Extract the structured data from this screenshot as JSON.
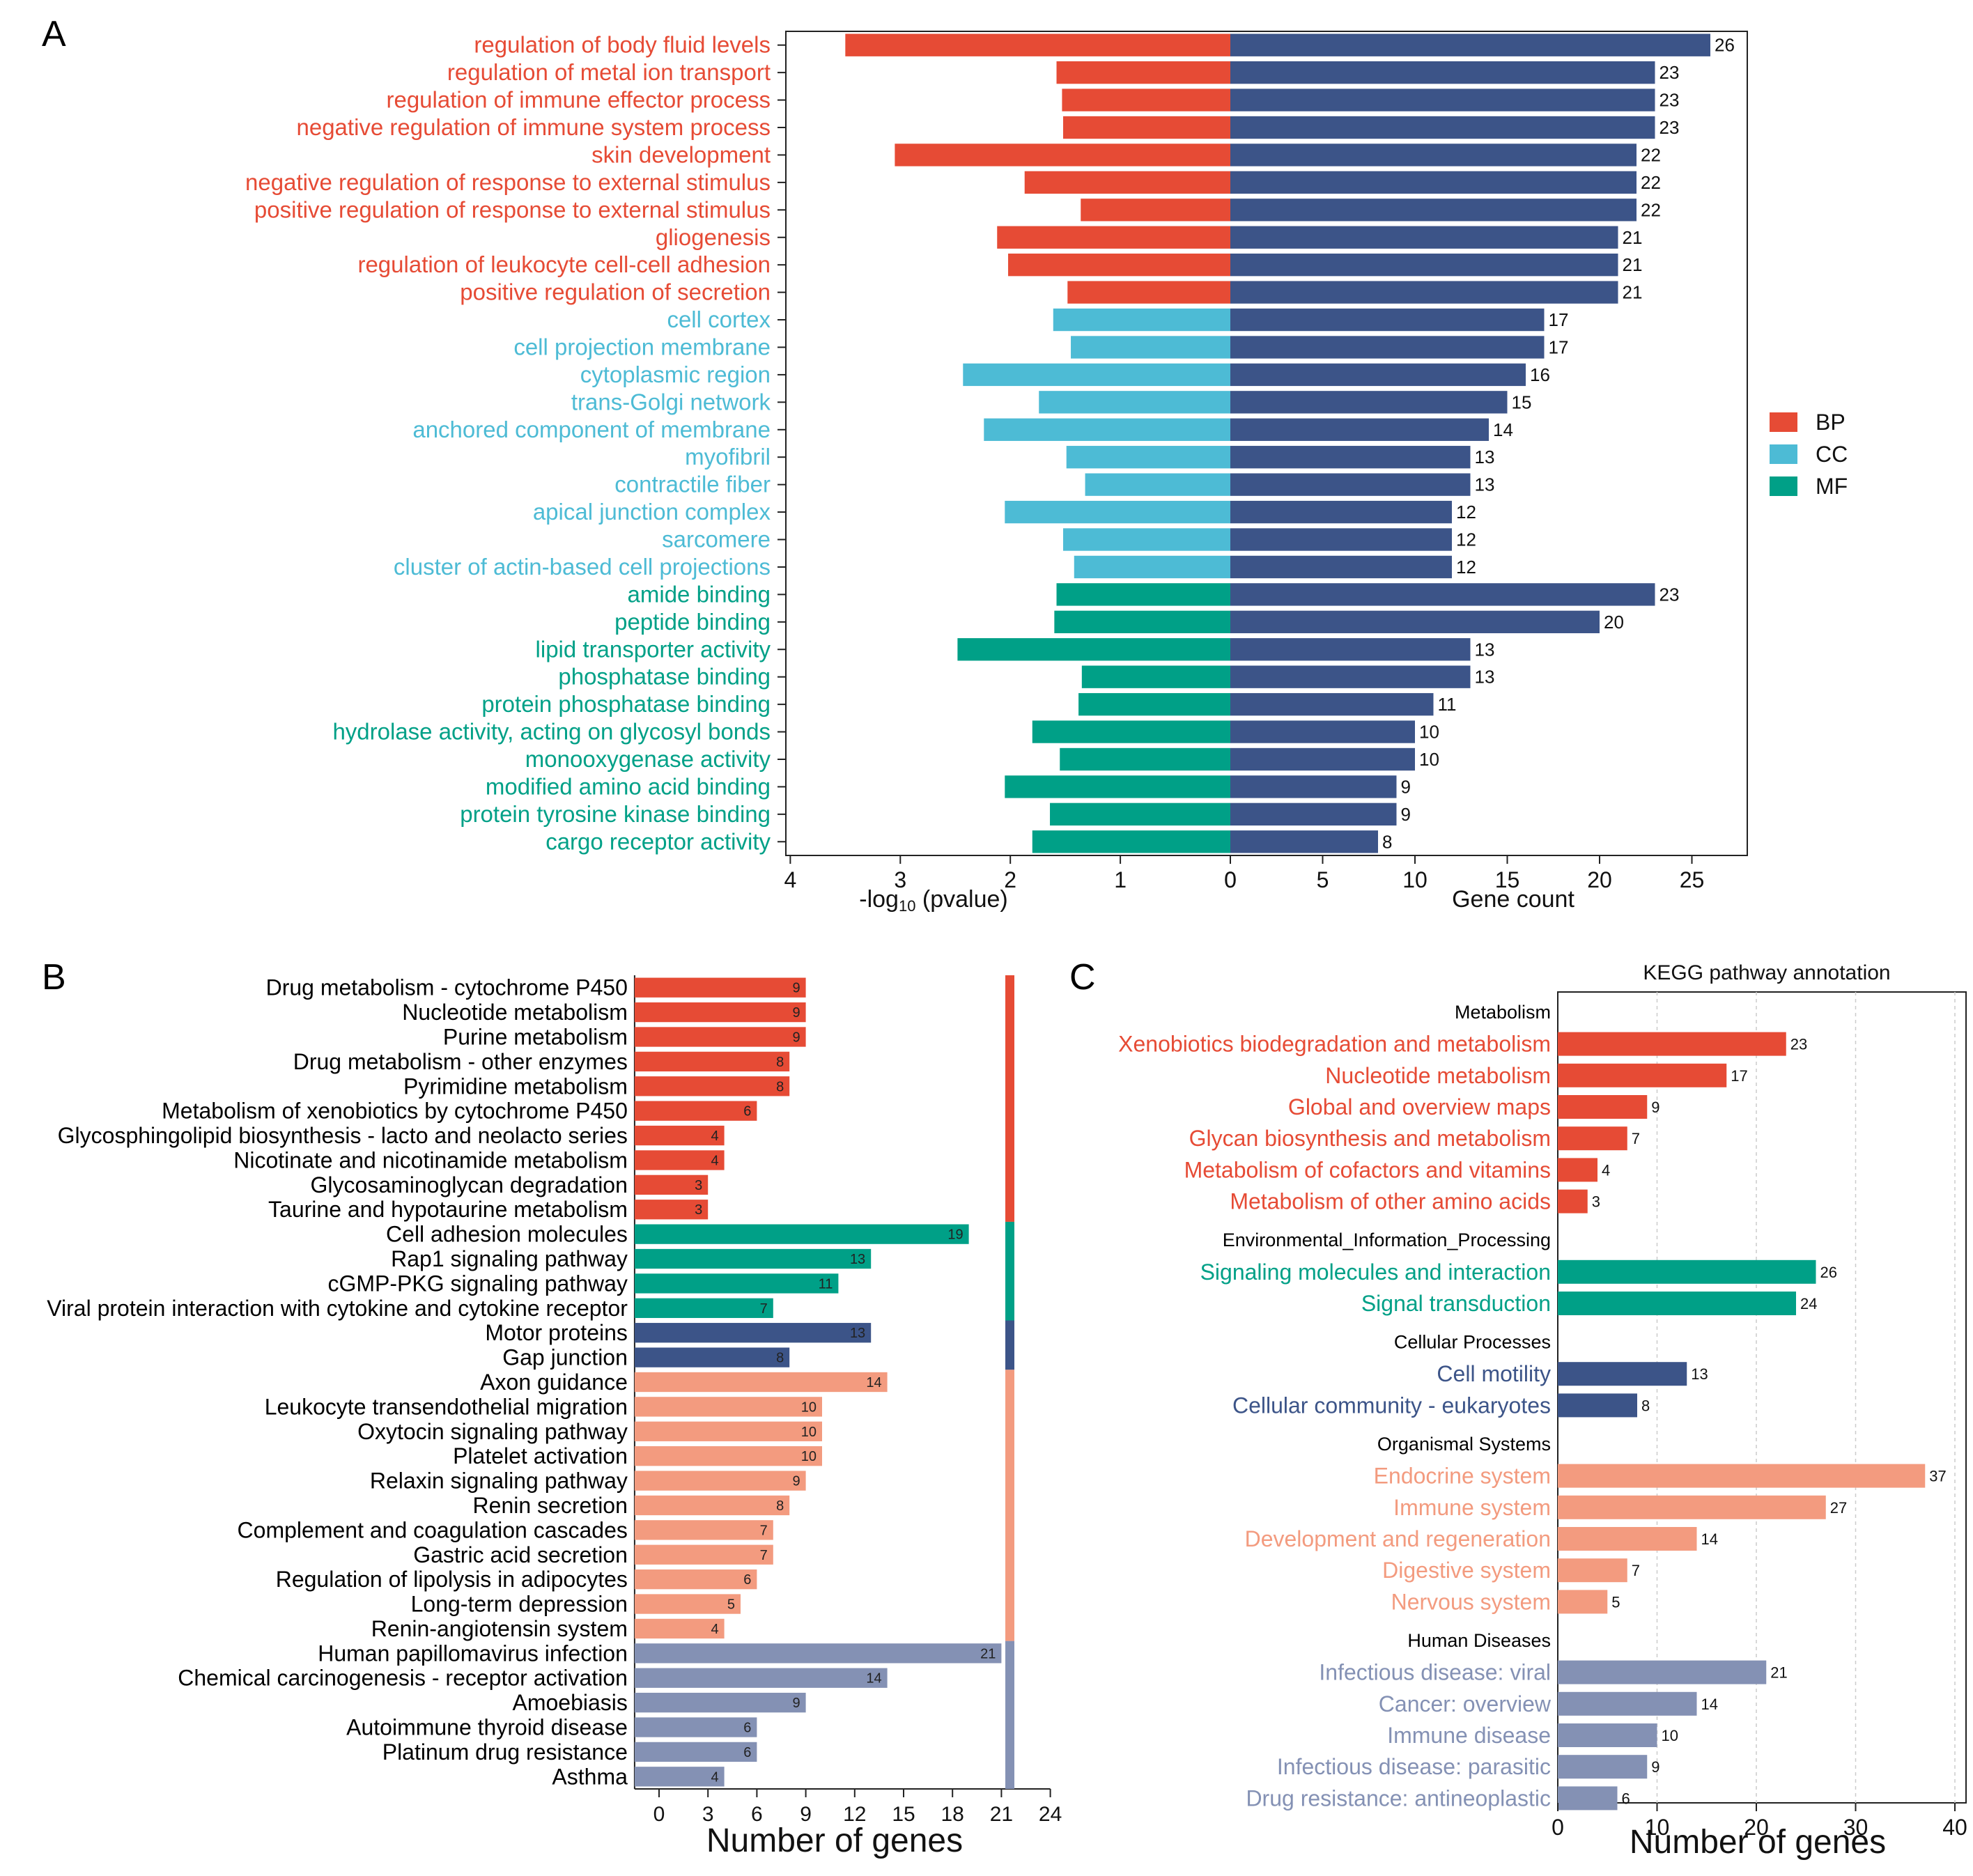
{
  "colors": {
    "BP": "#e64b35",
    "CC": "#4dbbd5",
    "MF": "#00a087",
    "gene_bar": "#3c5488",
    "metab": "#e64b35",
    "env": "#00a087",
    "cell": "#3c5488",
    "org": "#f39b7f",
    "human": "#8491b4"
  },
  "chart_data": [
    {
      "panel": "A",
      "type": "bar",
      "orientation": "horizontal-diverging",
      "left_axis": {
        "label_main": "-log",
        "label_sub": "10",
        "label_rest": " (pvalue)",
        "ticks": [
          "4",
          "3",
          "2",
          "1",
          "0"
        ],
        "range": [
          4,
          0
        ]
      },
      "right_axis": {
        "label": "Gene count",
        "ticks": [
          "0",
          "5",
          "10",
          "15",
          "20",
          "25"
        ],
        "range": [
          0,
          28
        ]
      },
      "legend": {
        "position": "right",
        "items": [
          {
            "key": "BP",
            "label": "BP"
          },
          {
            "key": "CC",
            "label": "CC"
          },
          {
            "key": "MF",
            "label": "MF"
          }
        ]
      },
      "categories": [
        {
          "term": "regulation of body fluid levels",
          "group": "BP",
          "neg_log10_p": 3.5,
          "count": 26
        },
        {
          "term": "regulation of metal ion transport",
          "group": "BP",
          "neg_log10_p": 1.58,
          "count": 23
        },
        {
          "term": "regulation of immune effector process",
          "group": "BP",
          "neg_log10_p": 1.53,
          "count": 23
        },
        {
          "term": "negative regulation of immune system process",
          "group": "BP",
          "neg_log10_p": 1.52,
          "count": 23
        },
        {
          "term": "skin development",
          "group": "BP",
          "neg_log10_p": 3.05,
          "count": 22
        },
        {
          "term": "negative regulation of response to external stimulus",
          "group": "BP",
          "neg_log10_p": 1.87,
          "count": 22
        },
        {
          "term": "positive regulation of response to external stimulus",
          "group": "BP",
          "neg_log10_p": 1.36,
          "count": 22
        },
        {
          "term": "gliogenesis",
          "group": "BP",
          "neg_log10_p": 2.12,
          "count": 21
        },
        {
          "term": "regulation of leukocyte cell-cell adhesion",
          "group": "BP",
          "neg_log10_p": 2.02,
          "count": 21
        },
        {
          "term": "positive regulation of secretion",
          "group": "BP",
          "neg_log10_p": 1.48,
          "count": 21
        },
        {
          "term": "cell cortex",
          "group": "CC",
          "neg_log10_p": 1.61,
          "count": 17
        },
        {
          "term": "cell projection membrane",
          "group": "CC",
          "neg_log10_p": 1.45,
          "count": 17
        },
        {
          "term": "cytoplasmic region",
          "group": "CC",
          "neg_log10_p": 2.43,
          "count": 16
        },
        {
          "term": "trans-Golgi network",
          "group": "CC",
          "neg_log10_p": 1.74,
          "count": 15
        },
        {
          "term": "anchored component of membrane",
          "group": "CC",
          "neg_log10_p": 2.24,
          "count": 14
        },
        {
          "term": "myofibril",
          "group": "CC",
          "neg_log10_p": 1.49,
          "count": 13
        },
        {
          "term": "contractile fiber",
          "group": "CC",
          "neg_log10_p": 1.32,
          "count": 13
        },
        {
          "term": "apical junction complex",
          "group": "CC",
          "neg_log10_p": 2.05,
          "count": 12
        },
        {
          "term": "sarcomere",
          "group": "CC",
          "neg_log10_p": 1.52,
          "count": 12
        },
        {
          "term": "cluster of actin-based cell projections",
          "group": "CC",
          "neg_log10_p": 1.42,
          "count": 12
        },
        {
          "term": "amide binding",
          "group": "MF",
          "neg_log10_p": 1.58,
          "count": 23
        },
        {
          "term": "peptide binding",
          "group": "MF",
          "neg_log10_p": 1.6,
          "count": 20
        },
        {
          "term": "lipid transporter activity",
          "group": "MF",
          "neg_log10_p": 2.48,
          "count": 13
        },
        {
          "term": "phosphatase binding",
          "group": "MF",
          "neg_log10_p": 1.35,
          "count": 13
        },
        {
          "term": "protein phosphatase binding",
          "group": "MF",
          "neg_log10_p": 1.38,
          "count": 11
        },
        {
          "term": "hydrolase activity, acting on glycosyl bonds",
          "group": "MF",
          "neg_log10_p": 1.8,
          "count": 10
        },
        {
          "term": "monooxygenase activity",
          "group": "MF",
          "neg_log10_p": 1.55,
          "count": 10
        },
        {
          "term": "modified amino acid binding",
          "group": "MF",
          "neg_log10_p": 2.05,
          "count": 9
        },
        {
          "term": "protein tyrosine kinase binding",
          "group": "MF",
          "neg_log10_p": 1.64,
          "count": 9
        },
        {
          "term": "cargo receptor activity",
          "group": "MF",
          "neg_log10_p": 1.8,
          "count": 8
        }
      ]
    },
    {
      "panel": "B",
      "type": "bar",
      "orientation": "horizontal",
      "xlabel": "Number of genes",
      "x_ticks": [
        "0",
        "3",
        "6",
        "9",
        "12",
        "15",
        "18",
        "21",
        "24"
      ],
      "xlim": [
        -1.5,
        24
      ],
      "categories": [
        {
          "name": "Drug metabolism - cytochrome P450",
          "value": 9,
          "group": "metab"
        },
        {
          "name": "Nucleotide metabolism",
          "value": 9,
          "group": "metab"
        },
        {
          "name": "Purine metabolism",
          "value": 9,
          "group": "metab"
        },
        {
          "name": "Drug metabolism - other enzymes",
          "value": 8,
          "group": "metab"
        },
        {
          "name": "Pyrimidine metabolism",
          "value": 8,
          "group": "metab"
        },
        {
          "name": "Metabolism of xenobiotics by cytochrome P450",
          "value": 6,
          "group": "metab"
        },
        {
          "name": "Glycosphingolipid biosynthesis - lacto and neolacto series",
          "value": 4,
          "group": "metab"
        },
        {
          "name": "Nicotinate and nicotinamide metabolism",
          "value": 4,
          "group": "metab"
        },
        {
          "name": "Glycosaminoglycan degradation",
          "value": 3,
          "group": "metab"
        },
        {
          "name": "Taurine and hypotaurine metabolism",
          "value": 3,
          "group": "metab"
        },
        {
          "name": "Cell adhesion molecules",
          "value": 19,
          "group": "env"
        },
        {
          "name": "Rap1 signaling pathway",
          "value": 13,
          "group": "env"
        },
        {
          "name": "cGMP-PKG signaling pathway",
          "value": 11,
          "group": "env"
        },
        {
          "name": "Viral protein interaction with cytokine and cytokine receptor",
          "value": 7,
          "group": "env"
        },
        {
          "name": "Motor proteins",
          "value": 13,
          "group": "cell"
        },
        {
          "name": "Gap junction",
          "value": 8,
          "group": "cell"
        },
        {
          "name": "Axon guidance",
          "value": 14,
          "group": "org"
        },
        {
          "name": "Leukocyte transendothelial migration",
          "value": 10,
          "group": "org"
        },
        {
          "name": "Oxytocin signaling pathway",
          "value": 10,
          "group": "org"
        },
        {
          "name": "Platelet activation",
          "value": 10,
          "group": "org"
        },
        {
          "name": "Relaxin signaling pathway",
          "value": 9,
          "group": "org"
        },
        {
          "name": "Renin secretion",
          "value": 8,
          "group": "org"
        },
        {
          "name": "Complement and coagulation cascades",
          "value": 7,
          "group": "org"
        },
        {
          "name": "Gastric acid secretion",
          "value": 7,
          "group": "org"
        },
        {
          "name": "Regulation of lipolysis in adipocytes",
          "value": 6,
          "group": "org"
        },
        {
          "name": "Long-term depression",
          "value": 5,
          "group": "org"
        },
        {
          "name": "Renin-angiotensin system",
          "value": 4,
          "group": "org"
        },
        {
          "name": "Human papillomavirus infection",
          "value": 21,
          "group": "human"
        },
        {
          "name": "Chemical carcinogenesis - receptor activation",
          "value": 14,
          "group": "human"
        },
        {
          "name": "Amoebiasis",
          "value": 9,
          "group": "human"
        },
        {
          "name": "Autoimmune thyroid disease",
          "value": 6,
          "group": "human"
        },
        {
          "name": "Platinum drug resistance",
          "value": 6,
          "group": "human"
        },
        {
          "name": "Asthma",
          "value": 4,
          "group": "human"
        }
      ]
    },
    {
      "panel": "C",
      "type": "bar",
      "orientation": "horizontal",
      "title": "KEGG pathway annotation",
      "xlabel": "Number of genes",
      "x_ticks": [
        "0",
        "10",
        "20",
        "30",
        "40"
      ],
      "xlim": [
        0,
        40
      ],
      "sections": [
        {
          "header": "Metabolism",
          "group": "metab",
          "items": [
            {
              "name": "Xenobiotics biodegradation and metabolism",
              "value": 23
            },
            {
              "name": "Nucleotide metabolism",
              "value": 17
            },
            {
              "name": "Global and overview maps",
              "value": 9
            },
            {
              "name": "Glycan biosynthesis and metabolism",
              "value": 7
            },
            {
              "name": "Metabolism of cofactors and vitamins",
              "value": 4
            },
            {
              "name": "Metabolism of other amino acids",
              "value": 3
            }
          ]
        },
        {
          "header": "Environmental_Information_Processing",
          "group": "env",
          "items": [
            {
              "name": "Signaling molecules and interaction",
              "value": 26
            },
            {
              "name": "Signal transduction",
              "value": 24
            }
          ]
        },
        {
          "header": "Cellular Processes",
          "group": "cell",
          "items": [
            {
              "name": "Cell motility",
              "value": 13
            },
            {
              "name": "Cellular community - eukaryotes",
              "value": 8
            }
          ]
        },
        {
          "header": "Organismal Systems",
          "group": "org",
          "items": [
            {
              "name": "Endocrine system",
              "value": 37
            },
            {
              "name": "Immune system",
              "value": 27
            },
            {
              "name": "Development and regeneration",
              "value": 14
            },
            {
              "name": "Digestive system",
              "value": 7
            },
            {
              "name": "Nervous system",
              "value": 5
            }
          ]
        },
        {
          "header": "Human Diseases",
          "group": "human",
          "items": [
            {
              "name": "Infectious disease: viral",
              "value": 21
            },
            {
              "name": "Cancer: overview",
              "value": 14
            },
            {
              "name": "Immune disease",
              "value": 10
            },
            {
              "name": "Infectious disease: parasitic",
              "value": 9
            },
            {
              "name": "Drug resistance: antineoplastic",
              "value": 6
            }
          ]
        }
      ]
    }
  ],
  "panel_labels": {
    "a": "A",
    "b": "B",
    "c": "C"
  }
}
